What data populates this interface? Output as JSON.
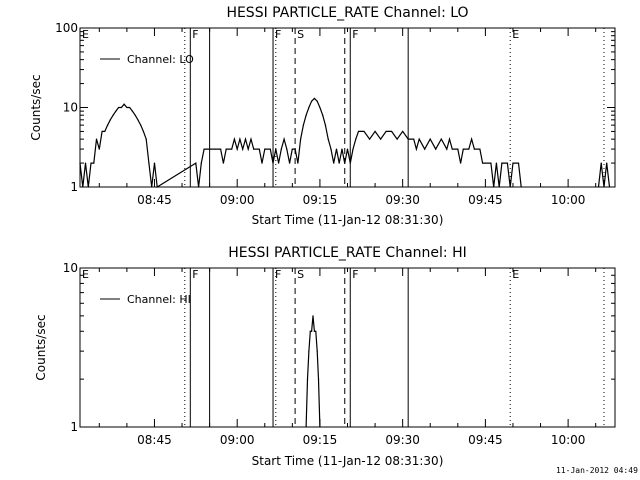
{
  "timestamp": "11-Jan-2012 04:49",
  "chart_data": [
    {
      "type": "line",
      "title": "HESSI PARTICLE_RATE Channel: LO",
      "xlabel": "Start Time (11-Jan-12 08:31:30)",
      "ylabel": "Counts/sec",
      "yscale": "log",
      "xlim": [
        "08:31:30",
        "10:08:30"
      ],
      "ylim": [
        1,
        100
      ],
      "x_ticks": [
        "08:45",
        "09:00",
        "09:15",
        "09:30",
        "09:45",
        "10:00"
      ],
      "y_ticks": [
        "1",
        "10",
        "100"
      ],
      "legend": "top-left",
      "series": [
        {
          "name": "Channel: LO",
          "points": [
            [
              "08:31:30",
              2
            ],
            [
              "08:32:00",
              1
            ],
            [
              "08:32:30",
              2
            ],
            [
              "08:33:00",
              1
            ],
            [
              "08:33:30",
              2
            ],
            [
              "08:34:00",
              2
            ],
            [
              "08:34:30",
              4
            ],
            [
              "08:35:00",
              3
            ],
            [
              "08:35:30",
              5
            ],
            [
              "08:36:00",
              5
            ],
            [
              "08:36:30",
              6
            ],
            [
              "08:37:00",
              7
            ],
            [
              "08:37:30",
              8
            ],
            [
              "08:38:00",
              9
            ],
            [
              "08:38:30",
              10
            ],
            [
              "08:39:00",
              10
            ],
            [
              "08:39:30",
              11
            ],
            [
              "08:40:00",
              10
            ],
            [
              "08:40:30",
              10
            ],
            [
              "08:41:00",
              9
            ],
            [
              "08:41:30",
              8
            ],
            [
              "08:42:00",
              7
            ],
            [
              "08:42:30",
              6
            ],
            [
              "08:43:00",
              5
            ],
            [
              "08:43:30",
              4
            ],
            [
              "08:44:00",
              2
            ],
            [
              "08:44:30",
              1
            ],
            [
              "08:45:00",
              2
            ],
            [
              "08:45:30",
              1
            ],
            [
              "08:52:30",
              2
            ],
            [
              "08:53:00",
              1
            ],
            [
              "08:53:30",
              2
            ],
            [
              "08:54:00",
              3
            ],
            [
              "08:54:30",
              3
            ],
            [
              "08:56:00",
              3
            ],
            [
              "08:57:00",
              3
            ],
            [
              "08:57:30",
              2
            ],
            [
              "08:58:00",
              3
            ],
            [
              "08:59:00",
              3
            ],
            [
              "08:59:30",
              4
            ],
            [
              "09:00:00",
              3
            ],
            [
              "09:00:30",
              4
            ],
            [
              "09:01:00",
              3
            ],
            [
              "09:01:30",
              4
            ],
            [
              "09:02:00",
              3
            ],
            [
              "09:02:30",
              4
            ],
            [
              "09:03:00",
              3
            ],
            [
              "09:04:00",
              3
            ],
            [
              "09:04:30",
              2
            ],
            [
              "09:05:00",
              3
            ],
            [
              "09:06:00",
              3
            ],
            [
              "09:06:30",
              2
            ],
            [
              "09:07:00",
              3
            ],
            [
              "09:07:30",
              2
            ],
            [
              "09:08:00",
              3
            ],
            [
              "09:08:30",
              4
            ],
            [
              "09:09:00",
              3
            ],
            [
              "09:09:30",
              2
            ],
            [
              "09:10:00",
              3
            ],
            [
              "09:10:30",
              3
            ],
            [
              "09:11:00",
              2
            ],
            [
              "09:11:30",
              4
            ],
            [
              "09:12:00",
              6
            ],
            [
              "09:12:30",
              8
            ],
            [
              "09:13:00",
              10
            ],
            [
              "09:13:30",
              12
            ],
            [
              "09:14:00",
              13
            ],
            [
              "09:14:30",
              12
            ],
            [
              "09:15:00",
              10
            ],
            [
              "09:15:30",
              8
            ],
            [
              "09:16:00",
              6
            ],
            [
              "09:16:30",
              4
            ],
            [
              "09:17:00",
              3
            ],
            [
              "09:17:30",
              2
            ],
            [
              "09:18:00",
              3
            ],
            [
              "09:18:30",
              2
            ],
            [
              "09:19:00",
              3
            ],
            [
              "09:19:30",
              2
            ],
            [
              "09:20:00",
              3
            ],
            [
              "09:20:30",
              2
            ],
            [
              "09:21:00",
              3
            ],
            [
              "09:21:30",
              4
            ],
            [
              "09:22:00",
              5
            ],
            [
              "09:23:00",
              5
            ],
            [
              "09:24:00",
              4
            ],
            [
              "09:25:00",
              5
            ],
            [
              "09:26:00",
              4
            ],
            [
              "09:27:00",
              5
            ],
            [
              "09:28:00",
              5
            ],
            [
              "09:29:00",
              4
            ],
            [
              "09:30:00",
              5
            ],
            [
              "09:31:00",
              4
            ],
            [
              "09:31:30",
              4
            ],
            [
              "09:32:00",
              4
            ],
            [
              "09:32:30",
              3
            ],
            [
              "09:33:00",
              4
            ],
            [
              "09:34:00",
              3
            ],
            [
              "09:35:00",
              4
            ],
            [
              "09:36:00",
              3
            ],
            [
              "09:37:00",
              4
            ],
            [
              "09:38:00",
              3
            ],
            [
              "09:38:30",
              4
            ],
            [
              "09:39:00",
              3
            ],
            [
              "09:40:00",
              3
            ],
            [
              "09:40:30",
              2
            ],
            [
              "09:41:00",
              3
            ],
            [
              "09:42:00",
              3
            ],
            [
              "09:42:30",
              4
            ],
            [
              "09:43:00",
              3
            ],
            [
              "09:44:00",
              3
            ],
            [
              "09:44:30",
              2
            ],
            [
              "09:45:00",
              2
            ],
            [
              "09:46:00",
              2
            ],
            [
              "09:46:30",
              1
            ],
            [
              "09:47:00",
              2
            ],
            [
              "09:47:30",
              1
            ],
            [
              "09:48:00",
              2
            ],
            [
              "09:49:00",
              2
            ],
            [
              "09:49:30",
              1
            ],
            [
              "09:50:00",
              2
            ],
            [
              "09:51:00",
              2
            ],
            [
              "09:51:30",
              1
            ]
          ]
        },
        {
          "name": "",
          "points": [
            [
              "10:05:30",
              1
            ],
            [
              "10:06:00",
              2
            ],
            [
              "10:06:30",
              1
            ],
            [
              "10:07:00",
              2
            ],
            [
              "10:07:30",
              1
            ]
          ]
        }
      ],
      "flags": [
        {
          "label": "E",
          "time": "08:31:30",
          "style": "dotted",
          "show_line": false
        },
        {
          "label": "",
          "time": "08:50:30",
          "style": "dotted",
          "show_line": true
        },
        {
          "label": "F",
          "time": "08:51:30",
          "style": "solid",
          "show_line": true
        },
        {
          "label": "",
          "time": "08:55:00",
          "style": "solid",
          "show_line": true
        },
        {
          "label": "F",
          "time": "09:06:30",
          "style": "solid",
          "show_line": true
        },
        {
          "label": "",
          "time": "09:07:00",
          "style": "dotted",
          "show_line": true
        },
        {
          "label": "S",
          "time": "09:10:30",
          "style": "dashed",
          "show_line": true
        },
        {
          "label": "",
          "time": "09:19:30",
          "style": "dashed",
          "show_line": true
        },
        {
          "label": "F",
          "time": "09:20:30",
          "style": "solid",
          "show_line": true
        },
        {
          "label": "",
          "time": "09:31:00",
          "style": "solid",
          "show_line": true
        },
        {
          "label": "E",
          "time": "09:49:30",
          "style": "dotted",
          "show_line": true
        },
        {
          "label": "",
          "time": "10:06:30",
          "style": "dotted",
          "show_line": true
        }
      ]
    },
    {
      "type": "line",
      "title": "HESSI PARTICLE_RATE Channel: HI",
      "xlabel": "Start Time (11-Jan-12 08:31:30)",
      "ylabel": "Counts/sec",
      "yscale": "log",
      "xlim": [
        "08:31:30",
        "10:08:30"
      ],
      "ylim": [
        1,
        10
      ],
      "x_ticks": [
        "08:45",
        "09:00",
        "09:15",
        "09:30",
        "09:45",
        "10:00"
      ],
      "y_ticks": [
        "1",
        "10"
      ],
      "legend": "top-left",
      "series": [
        {
          "name": "Channel: HI",
          "points": [
            [
              "09:12:30",
              1
            ],
            [
              "09:12:45",
              2
            ],
            [
              "09:13:00",
              3
            ],
            [
              "09:13:15",
              4
            ],
            [
              "09:13:30",
              4
            ],
            [
              "09:13:45",
              5
            ],
            [
              "09:14:00",
              4
            ],
            [
              "09:14:15",
              4
            ],
            [
              "09:14:30",
              3
            ],
            [
              "09:14:45",
              2
            ],
            [
              "09:15:00",
              1
            ]
          ]
        }
      ],
      "flags": [
        {
          "label": "E",
          "time": "08:31:30",
          "style": "dotted",
          "show_line": false
        },
        {
          "label": "",
          "time": "08:50:30",
          "style": "dotted",
          "show_line": true
        },
        {
          "label": "F",
          "time": "08:51:30",
          "style": "solid",
          "show_line": true
        },
        {
          "label": "",
          "time": "08:55:00",
          "style": "solid",
          "show_line": true
        },
        {
          "label": "F",
          "time": "09:06:30",
          "style": "solid",
          "show_line": true
        },
        {
          "label": "",
          "time": "09:07:00",
          "style": "dotted",
          "show_line": true
        },
        {
          "label": "S",
          "time": "09:10:30",
          "style": "dashed",
          "show_line": true
        },
        {
          "label": "",
          "time": "09:19:30",
          "style": "dashed",
          "show_line": true
        },
        {
          "label": "F",
          "time": "09:20:30",
          "style": "solid",
          "show_line": true
        },
        {
          "label": "",
          "time": "09:31:00",
          "style": "solid",
          "show_line": true
        },
        {
          "label": "E",
          "time": "09:49:30",
          "style": "dotted",
          "show_line": true
        },
        {
          "label": "",
          "time": "10:06:30",
          "style": "dotted",
          "show_line": true
        }
      ]
    }
  ]
}
